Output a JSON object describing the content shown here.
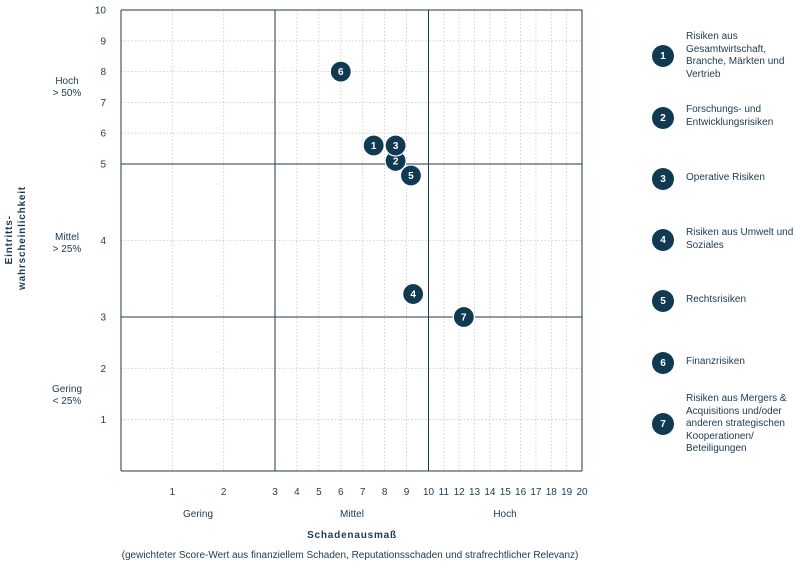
{
  "chart_data": {
    "type": "scatter",
    "xlabel": "Schadenausmaß",
    "subtitle": "(gewichteter Score-Wert aus finanziellem Schaden, Reputationsschaden und strafrechtlicher Relevanz)",
    "ylabel_lines": [
      "Eintritts-",
      "wahrscheinlichkeit"
    ],
    "x_ticks": [
      "1",
      "2",
      "3",
      "4",
      "5",
      "6",
      "7",
      "8",
      "9",
      "10",
      "11",
      "12",
      "13",
      "14",
      "15",
      "16",
      "17",
      "18",
      "19",
      "20"
    ],
    "y_ticks": [
      "1",
      "2",
      "3",
      "4",
      "5",
      "6",
      "7",
      "8",
      "9",
      "10"
    ],
    "x_bands": [
      "Gering",
      "Mittel",
      "Hoch"
    ],
    "y_bands": [
      {
        "l1": "Hoch",
        "l2": "> 50%"
      },
      {
        "l1": "Mittel",
        "l2": "> 25%"
      },
      {
        "l1": "Gering",
        "l2": "< 25%"
      }
    ],
    "points": [
      {
        "label": "1",
        "x": 7.5,
        "y": 5.6
      },
      {
        "label": "2",
        "x": 8.5,
        "y": 5.1
      },
      {
        "label": "3",
        "x": 8.5,
        "y": 5.6
      },
      {
        "label": "4",
        "x": 9.3,
        "y": 3.3
      },
      {
        "label": "5",
        "x": 9.2,
        "y": 4.85
      },
      {
        "label": "6",
        "x": 6,
        "y": 8
      },
      {
        "label": "7",
        "x": 12.3,
        "y": 3
      }
    ],
    "colors": {
      "marker": "#0f3a52",
      "axis": "#1c3a4f",
      "grid": "#c3c9cd"
    }
  },
  "legend": [
    {
      "num": "1",
      "text": "Risiken aus Gesamtwirtschaft, Branche, Märkten und Vertrieb"
    },
    {
      "num": "2",
      "text": "Forschungs- und Entwicklungsrisiken"
    },
    {
      "num": "3",
      "text": "Operative Risiken"
    },
    {
      "num": "4",
      "text": "Risiken aus Umwelt und Soziales"
    },
    {
      "num": "5",
      "text": "Rechtsrisiken"
    },
    {
      "num": "6",
      "text": "Finanzrisiken"
    },
    {
      "num": "7",
      "text": "Risiken aus Mergers & Acquisitions und/oder anderen strategischen Kooperationen/ Beteiligungen"
    }
  ]
}
